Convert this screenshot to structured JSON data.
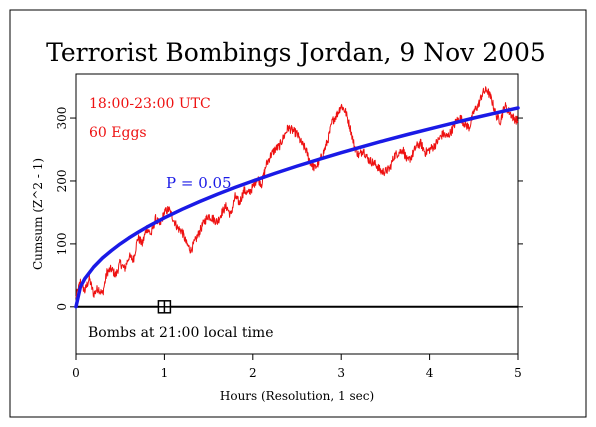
{
  "chart_data": {
    "type": "line",
    "title": "Terrorist Bombings Jordan, 9 Nov 2005",
    "xlabel": "Hours (Resolution, 1 sec)",
    "ylabel": "Cumsum (Z^2 - 1)",
    "xlim": [
      0,
      5
    ],
    "ylim": [
      -75,
      370
    ],
    "x_ticks": [
      0,
      1,
      2,
      3,
      4,
      5
    ],
    "x_tick_labels": [
      "0",
      "1",
      "2",
      "3",
      "4",
      "5"
    ],
    "y_ticks": [
      0,
      100,
      200,
      300
    ],
    "y_tick_labels": [
      "0",
      "100",
      "200",
      "300"
    ],
    "grid": false,
    "annotations": {
      "time_range": "18:00-23:00 UTC",
      "eggs": "60 Eggs",
      "probability": "P = 0.05",
      "event_note": "Bombs at 21:00 local time"
    },
    "event_marker": {
      "x": 1.0,
      "y": 0
    },
    "colors": {
      "data": "#ee1111",
      "envelope": "#1a1ae6",
      "axis": "#000000",
      "baseline": "#000000"
    },
    "series": [
      {
        "style": "noisy-random-walk",
        "x": [
          0,
          0.05,
          0.1,
          0.15,
          0.2,
          0.25,
          0.3,
          0.35,
          0.4,
          0.45,
          0.5,
          0.55,
          0.6,
          0.65,
          0.7,
          0.75,
          0.8,
          0.85,
          0.9,
          0.95,
          1.0,
          1.05,
          1.1,
          1.15,
          1.2,
          1.25,
          1.3,
          1.35,
          1.4,
          1.45,
          1.5,
          1.55,
          1.6,
          1.65,
          1.7,
          1.75,
          1.8,
          1.85,
          1.9,
          1.95,
          2.0,
          2.05,
          2.1,
          2.15,
          2.2,
          2.25,
          2.3,
          2.35,
          2.4,
          2.45,
          2.5,
          2.55,
          2.6,
          2.65,
          2.7,
          2.75,
          2.8,
          2.85,
          2.9,
          2.95,
          3.0,
          3.05,
          3.1,
          3.15,
          3.2,
          3.25,
          3.3,
          3.35,
          3.4,
          3.45,
          3.5,
          3.55,
          3.6,
          3.65,
          3.7,
          3.75,
          3.8,
          3.85,
          3.9,
          3.95,
          4.0,
          4.05,
          4.1,
          4.15,
          4.2,
          4.25,
          4.3,
          4.35,
          4.4,
          4.45,
          4.5,
          4.55,
          4.6,
          4.65,
          4.7,
          4.75,
          4.8,
          4.85,
          4.9,
          4.95,
          5.0
        ],
        "values": [
          15,
          40,
          25,
          45,
          20,
          30,
          20,
          55,
          60,
          50,
          70,
          60,
          80,
          75,
          110,
          100,
          125,
          115,
          140,
          130,
          150,
          155,
          140,
          125,
          120,
          100,
          90,
          105,
          120,
          135,
          145,
          140,
          135,
          150,
          160,
          145,
          175,
          165,
          185,
          180,
          190,
          205,
          195,
          225,
          240,
          250,
          255,
          270,
          285,
          280,
          275,
          260,
          250,
          230,
          220,
          230,
          245,
          265,
          295,
          305,
          320,
          310,
          285,
          255,
          240,
          250,
          235,
          230,
          225,
          215,
          215,
          220,
          240,
          245,
          250,
          230,
          240,
          255,
          260,
          245,
          250,
          255,
          265,
          275,
          270,
          280,
          295,
          300,
          290,
          285,
          310,
          320,
          340,
          345,
          330,
          305,
          295,
          320,
          310,
          300,
          295
        ]
      },
      {
        "name": "P = 0.05",
        "style": "envelope",
        "x": [
          0,
          0.05,
          0.1,
          0.2,
          0.3,
          0.4,
          0.5,
          0.6,
          0.7,
          0.8,
          0.9,
          1.0,
          1.2,
          1.4,
          1.6,
          1.8,
          2.0,
          2.25,
          2.5,
          2.75,
          3.0,
          3.25,
          3.5,
          3.75,
          4.0,
          4.25,
          4.5,
          4.75,
          5.0
        ],
        "values": [
          0,
          31.6,
          44.7,
          63.2,
          77.5,
          89.4,
          100.0,
          109.5,
          118.3,
          126.5,
          134.2,
          141.4,
          154.9,
          167.3,
          178.9,
          189.7,
          200.0,
          212.1,
          223.6,
          234.5,
          244.9,
          254.9,
          264.6,
          273.9,
          282.8,
          291.5,
          300.0,
          308.2,
          316.2
        ]
      }
    ]
  }
}
